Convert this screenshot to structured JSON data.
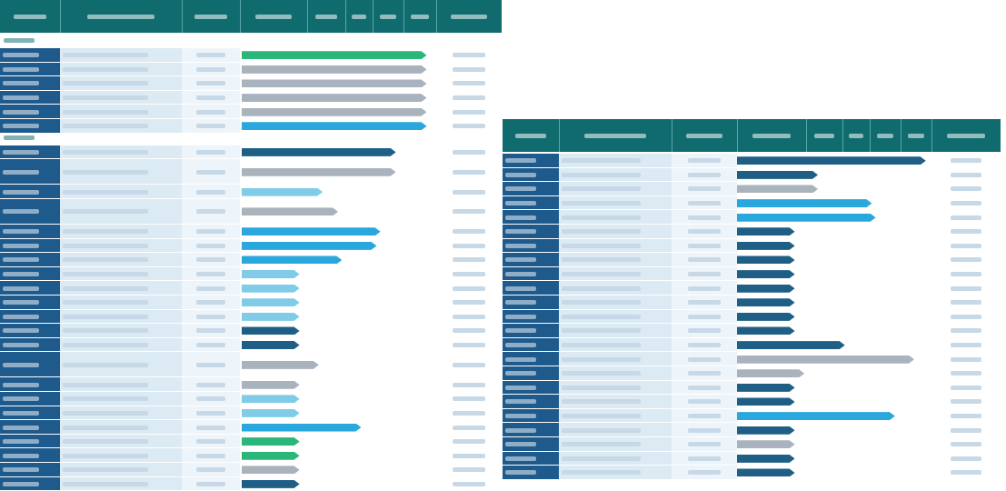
{
  "colors": {
    "header": "#0f6b6e",
    "category": "#1e5a8c",
    "name_cell": "#dbeaf3",
    "bar_green": "#2bb67a",
    "bar_blue": "#2aa7dc",
    "bar_navy": "#1f5f86",
    "bar_gray": "#a9b3bd",
    "bar_light": "#7fcbe8"
  },
  "left": {
    "rows": [
      {
        "type": "section"
      },
      {
        "type": "row",
        "bar": "green",
        "bar_end": 0.96
      },
      {
        "type": "row",
        "bar": "gray",
        "bar_end": 0.96
      },
      {
        "type": "row",
        "bar": "gray",
        "bar_end": 0.96
      },
      {
        "type": "row",
        "bar": "gray",
        "bar_end": 0.96
      },
      {
        "type": "row",
        "bar": "gray",
        "bar_end": 0.96
      },
      {
        "type": "row",
        "bar": "blue",
        "bar_end": 0.96
      },
      {
        "type": "section"
      },
      {
        "type": "row",
        "bar": "navy",
        "bar_end": 0.8
      },
      {
        "type": "row",
        "bar": "gray",
        "bar_end": 0.8,
        "tall": true
      },
      {
        "type": "row",
        "bar": "light",
        "bar_end": 0.42
      },
      {
        "type": "row",
        "bar": "gray",
        "bar_end": 0.5,
        "tall": true
      },
      {
        "type": "row",
        "bar": "blue",
        "bar_end": 0.72
      },
      {
        "type": "row",
        "bar": "blue",
        "bar_end": 0.7
      },
      {
        "type": "row",
        "bar": "blue",
        "bar_end": 0.52
      },
      {
        "type": "row",
        "bar": "light",
        "bar_end": 0.3
      },
      {
        "type": "row",
        "bar": "light",
        "bar_end": 0.3
      },
      {
        "type": "row",
        "bar": "light",
        "bar_end": 0.3
      },
      {
        "type": "row",
        "bar": "light",
        "bar_end": 0.3
      },
      {
        "type": "row",
        "bar": "navy",
        "bar_end": 0.3
      },
      {
        "type": "row",
        "bar": "navy",
        "bar_end": 0.3
      },
      {
        "type": "row",
        "bar": "gray",
        "bar_end": 0.4,
        "tall": true
      },
      {
        "type": "row",
        "bar": "gray",
        "bar_end": 0.3
      },
      {
        "type": "row",
        "bar": "light",
        "bar_end": 0.3
      },
      {
        "type": "row",
        "bar": "light",
        "bar_end": 0.3
      },
      {
        "type": "row",
        "bar": "blue",
        "bar_end": 0.62
      },
      {
        "type": "row",
        "bar": "green",
        "bar_end": 0.3
      },
      {
        "type": "row",
        "bar": "green",
        "bar_end": 0.3
      },
      {
        "type": "row",
        "bar": "gray",
        "bar_end": 0.3
      },
      {
        "type": "row",
        "bar": "navy",
        "bar_end": 0.3
      }
    ]
  },
  "right": {
    "rows": [
      {
        "type": "row",
        "bar": "navy",
        "bar_end": 0.98
      },
      {
        "type": "row",
        "bar": "navy",
        "bar_end": 0.42
      },
      {
        "type": "row",
        "bar": "gray",
        "bar_end": 0.42
      },
      {
        "type": "row",
        "bar": "blue",
        "bar_end": 0.7
      },
      {
        "type": "row",
        "bar": "blue",
        "bar_end": 0.72
      },
      {
        "type": "row",
        "bar": "navy",
        "bar_end": 0.3
      },
      {
        "type": "row",
        "bar": "navy",
        "bar_end": 0.3
      },
      {
        "type": "row",
        "bar": "navy",
        "bar_end": 0.3
      },
      {
        "type": "row",
        "bar": "navy",
        "bar_end": 0.3
      },
      {
        "type": "row",
        "bar": "navy",
        "bar_end": 0.3
      },
      {
        "type": "row",
        "bar": "navy",
        "bar_end": 0.3
      },
      {
        "type": "row",
        "bar": "navy",
        "bar_end": 0.3
      },
      {
        "type": "row",
        "bar": "navy",
        "bar_end": 0.3
      },
      {
        "type": "row",
        "bar": "navy",
        "bar_end": 0.56
      },
      {
        "type": "row",
        "bar": "gray",
        "bar_end": 0.92
      },
      {
        "type": "row",
        "bar": "gray",
        "bar_end": 0.35
      },
      {
        "type": "row",
        "bar": "navy",
        "bar_end": 0.3
      },
      {
        "type": "row",
        "bar": "navy",
        "bar_end": 0.3
      },
      {
        "type": "row",
        "bar": "blue",
        "bar_end": 0.82
      },
      {
        "type": "row",
        "bar": "navy",
        "bar_end": 0.3
      },
      {
        "type": "row",
        "bar": "gray",
        "bar_end": 0.3
      },
      {
        "type": "row",
        "bar": "navy",
        "bar_end": 0.3
      },
      {
        "type": "row",
        "bar": "navy",
        "bar_end": 0.3
      }
    ]
  }
}
